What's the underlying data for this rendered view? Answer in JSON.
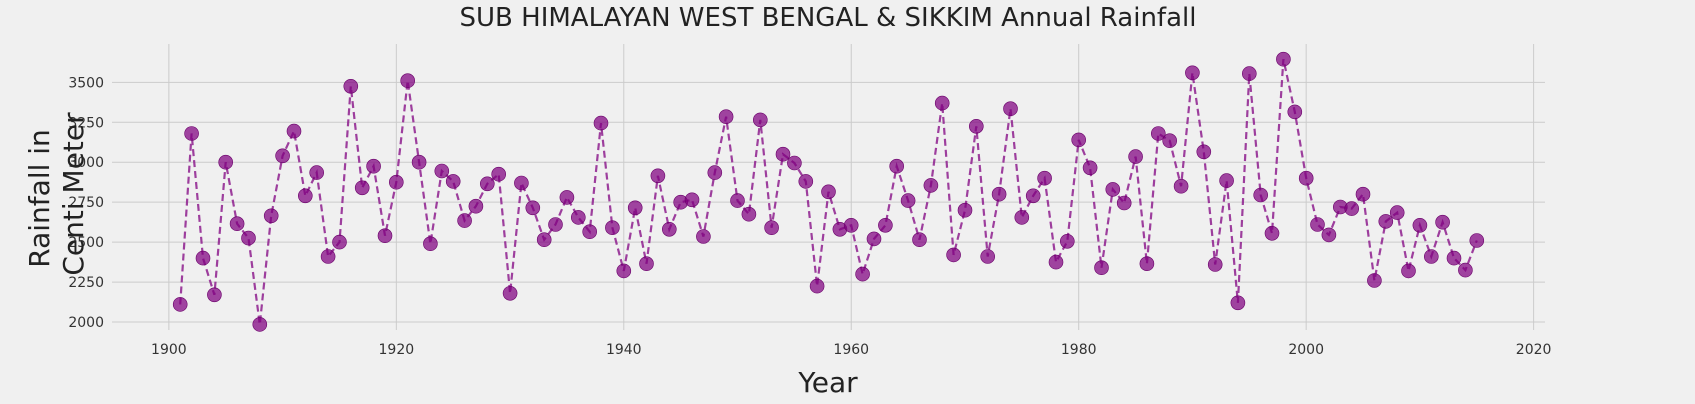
{
  "chart_data": {
    "type": "scatter",
    "title": "SUB HIMALAYAN WEST BENGAL & SIKKIM Annual Rainfall",
    "xlabel": "Year",
    "ylabel_lines": [
      "Rainfall in",
      "Centi Meter"
    ],
    "xlim": [
      1895,
      2021
    ],
    "ylim": [
      1950,
      3740
    ],
    "xticks": [
      1900,
      1920,
      1940,
      1960,
      1980,
      2000,
      2020
    ],
    "yticks": [
      2000,
      2250,
      2500,
      2750,
      3000,
      3250,
      3500
    ],
    "grid": true,
    "line_style": "dashed",
    "color": "#800080",
    "series": [
      {
        "x": [
          1901,
          1902,
          1903,
          1904,
          1905,
          1906,
          1907,
          1908,
          1909,
          1910,
          1911,
          1912,
          1913,
          1914,
          1915,
          1916,
          1917,
          1918,
          1919,
          1920,
          1921,
          1922,
          1923,
          1924,
          1925,
          1926,
          1927,
          1928,
          1929,
          1930,
          1931,
          1932,
          1933,
          1934,
          1935,
          1936,
          1937,
          1938,
          1939,
          1940,
          1941,
          1942,
          1943,
          1944,
          1945,
          1946,
          1947,
          1948,
          1949,
          1950,
          1951,
          1952,
          1953,
          1954,
          1955,
          1956,
          1957,
          1958,
          1959,
          1960,
          1961,
          1962,
          1963,
          1964,
          1965,
          1966,
          1967,
          1968,
          1969,
          1970,
          1971,
          1972,
          1973,
          1974,
          1975,
          1976,
          1977,
          1978,
          1979,
          1980,
          1981,
          1982,
          1983,
          1984,
          1985,
          1986,
          1987,
          1988,
          1989,
          1990,
          1991,
          1992,
          1993,
          1994,
          1995,
          1996,
          1997,
          1998,
          1999,
          2000,
          2001,
          2002,
          2003,
          2004,
          2005,
          2006,
          2007,
          2008,
          2009,
          2010,
          2011,
          2012,
          2013,
          2014,
          2015
        ],
        "y": [
          2110,
          3180,
          2400,
          2170,
          3000,
          2615,
          2525,
          1985,
          2665,
          3040,
          3195,
          2790,
          2935,
          2410,
          2500,
          3475,
          2840,
          2975,
          2540,
          2875,
          3510,
          3000,
          2490,
          2945,
          2880,
          2635,
          2725,
          2865,
          2925,
          2180,
          2870,
          2715,
          2515,
          2610,
          2780,
          2655,
          2565,
          3245,
          2590,
          2320,
          2715,
          2365,
          2915,
          2580,
          2750,
          2765,
          2535,
          2935,
          3285,
          2760,
          2675,
          3265,
          2590,
          3050,
          2995,
          2880,
          2225,
          2815,
          2580,
          2605,
          2300,
          2520,
          2605,
          2975,
          2760,
          2515,
          2855,
          3370,
          2420,
          2700,
          3225,
          2410,
          2800,
          3335,
          2655,
          2790,
          2900,
          2375,
          2505,
          3140,
          2965,
          2340,
          2830,
          2745,
          3035,
          2365,
          3180,
          3135,
          2850,
          3560,
          3065,
          2360,
          2885,
          2120,
          3555,
          2795,
          2555,
          3645,
          3315,
          2900,
          2610,
          2545,
          2720,
          2710,
          2800,
          2260,
          2630,
          2685,
          2320,
          2605,
          2410,
          2625,
          2400,
          2325,
          2510
        ]
      }
    ]
  }
}
